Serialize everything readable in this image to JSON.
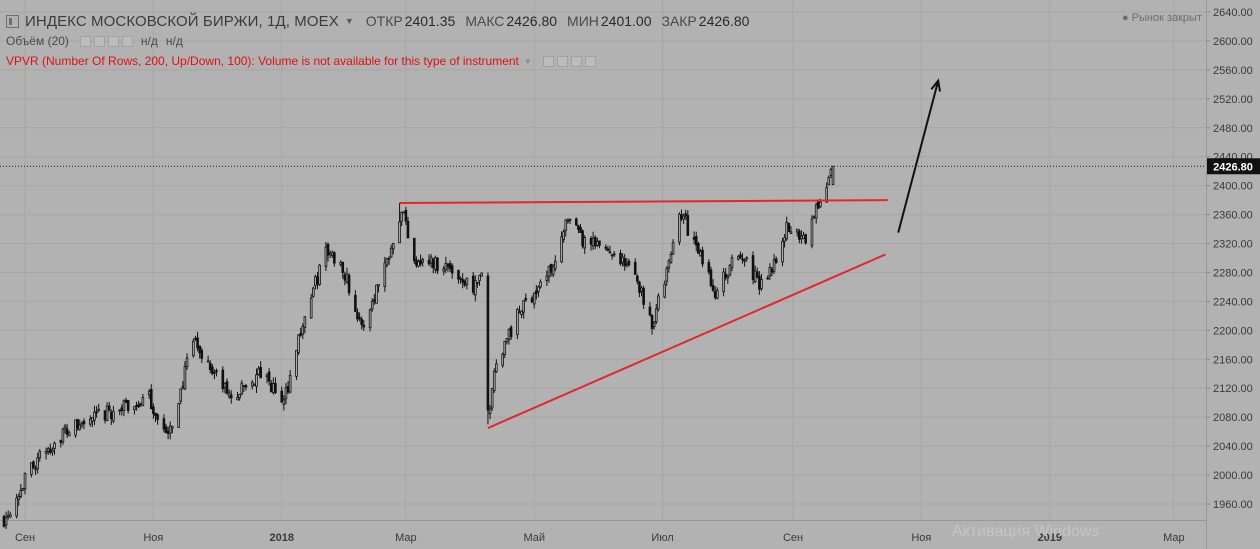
{
  "header": {
    "title": "ИНДЕКС МОСКОВСКОЙ БИРЖИ, 1Д, MOEX",
    "ohlc": [
      {
        "label": "ОТКР",
        "value": "2401.35"
      },
      {
        "label": "МАКС",
        "value": "2426.80"
      },
      {
        "label": "МИН",
        "value": "2401.00"
      },
      {
        "label": "ЗАКР",
        "value": "2426.80"
      }
    ],
    "volume_label": "Объём (20)",
    "volume_values": [
      "н/д",
      "н/д"
    ],
    "vpvr_text": "VPVR (Number Of Rows, 200, Up/Down, 100): Volume is not available for this type of instrument",
    "market_status": "Рынок закрыт"
  },
  "watermark": "Активация Windows",
  "colors": {
    "background": "#b2b2b2",
    "grid": "#a6a6a6",
    "candle": "#111111",
    "trendline": "#e3262f",
    "arrow": "#111111",
    "price_tag": "#111111"
  },
  "chart_data": {
    "type": "candlestick",
    "title": "ИНДЕКС МОСКОВСКОЙ БИРЖИ, 1Д, MOEX",
    "timeframe": "1D",
    "date_range": [
      "2017-08-22",
      "2018-09-20"
    ],
    "x_ticks": [
      "Сен",
      "Ноя",
      "2018",
      "Мар",
      "Май",
      "Июл",
      "Сен",
      "Ноя",
      "2019",
      "Мар"
    ],
    "y_ticks": [
      1960,
      2000,
      2040,
      2080,
      2120,
      2160,
      2200,
      2240,
      2280,
      2320,
      2360,
      2400,
      2440,
      2480,
      2520,
      2560,
      2600,
      2640
    ],
    "ylim": [
      1930,
      2655
    ],
    "last_price": 2426.8,
    "last_price_label": "2426.80",
    "price_keypoints": [
      {
        "date": "2017-08-22",
        "close": 1940
      },
      {
        "date": "2017-09-05",
        "close": 2015
      },
      {
        "date": "2017-09-20",
        "close": 2060
      },
      {
        "date": "2017-10-10",
        "close": 2085
      },
      {
        "date": "2017-10-30",
        "close": 2105
      },
      {
        "date": "2017-11-08",
        "close": 2050
      },
      {
        "date": "2017-11-20",
        "close": 2185
      },
      {
        "date": "2017-12-08",
        "close": 2105
      },
      {
        "date": "2017-12-22",
        "close": 2140
      },
      {
        "date": "2018-01-02",
        "close": 2100
      },
      {
        "date": "2018-01-10",
        "close": 2200
      },
      {
        "date": "2018-01-22",
        "close": 2310
      },
      {
        "date": "2018-01-30",
        "close": 2290
      },
      {
        "date": "2018-02-08",
        "close": 2200
      },
      {
        "date": "2018-02-20",
        "close": 2300
      },
      {
        "date": "2018-02-27",
        "close": 2370
      },
      {
        "date": "2018-03-05",
        "close": 2300
      },
      {
        "date": "2018-03-20",
        "close": 2290
      },
      {
        "date": "2018-04-02",
        "close": 2260
      },
      {
        "date": "2018-04-06",
        "close": 2270
      },
      {
        "date": "2018-04-09",
        "close": 2080
      },
      {
        "date": "2018-04-13",
        "close": 2160
      },
      {
        "date": "2018-04-25",
        "close": 2230
      },
      {
        "date": "2018-05-08",
        "close": 2280
      },
      {
        "date": "2018-05-17",
        "close": 2350
      },
      {
        "date": "2018-05-25",
        "close": 2320
      },
      {
        "date": "2018-06-08",
        "close": 2310
      },
      {
        "date": "2018-06-19",
        "close": 2270
      },
      {
        "date": "2018-06-26",
        "close": 2210
      },
      {
        "date": "2018-07-05",
        "close": 2300
      },
      {
        "date": "2018-07-09",
        "close": 2370
      },
      {
        "date": "2018-07-19",
        "close": 2300
      },
      {
        "date": "2018-07-27",
        "close": 2250
      },
      {
        "date": "2018-08-02",
        "close": 2290
      },
      {
        "date": "2018-08-10",
        "close": 2300
      },
      {
        "date": "2018-08-16",
        "close": 2260
      },
      {
        "date": "2018-08-22",
        "close": 2290
      },
      {
        "date": "2018-08-29",
        "close": 2340
      },
      {
        "date": "2018-09-07",
        "close": 2330
      },
      {
        "date": "2018-09-14",
        "close": 2380
      },
      {
        "date": "2018-09-20",
        "close": 2426.8
      }
    ],
    "annotations": [
      {
        "kind": "trendline",
        "name": "resistance",
        "from": {
          "date": "2018-02-26",
          "price": 2376
        },
        "to": {
          "date": "2018-10-16",
          "price": 2380
        }
      },
      {
        "kind": "trendline",
        "name": "support",
        "from": {
          "date": "2018-04-09",
          "price": 2065
        },
        "to": {
          "date": "2018-10-15",
          "price": 2305
        }
      },
      {
        "kind": "arrow",
        "name": "breakout-arrow",
        "from": {
          "date": "2018-10-21",
          "price": 2335
        },
        "to": {
          "date": "2018-11-09",
          "price": 2545
        }
      }
    ]
  }
}
